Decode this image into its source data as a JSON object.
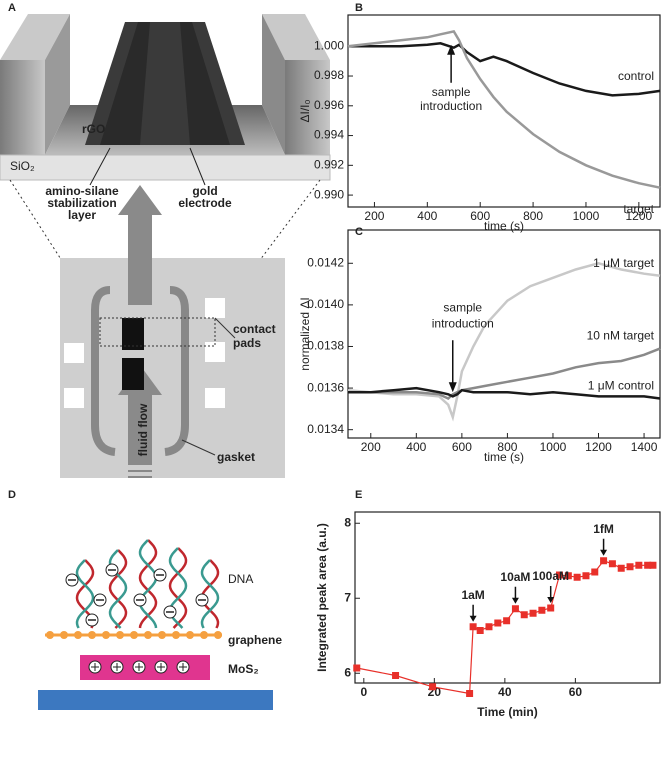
{
  "panels": [
    "A",
    "B",
    "C",
    "D",
    "E"
  ],
  "diagram_a": {
    "layer_top": "rGO",
    "substrate": "SiO₂",
    "silane": [
      "amino-silane",
      "stabilization",
      "layer"
    ],
    "electrode": [
      "gold",
      "electrode"
    ],
    "pads": [
      "contact",
      "pads"
    ],
    "gasket": "gasket",
    "flow": "fluid flow"
  },
  "diagram_d": {
    "dna": "DNA",
    "graphene": "graphene",
    "mos2": "MoS₂"
  },
  "chart_data": [
    {
      "type": "line",
      "xlabel": "time (s)",
      "ylabel": "ΔI/I₀",
      "x": [
        100,
        200,
        300,
        400,
        450,
        500,
        520,
        550,
        600,
        650,
        700,
        800,
        900,
        1000,
        1100,
        1200,
        1280
      ],
      "series": [
        {
          "name": "control",
          "color": "#1a1a1a",
          "values": [
            1.0,
            1.0,
            1.0,
            1.0001,
            1.0002,
            0.9999,
            1.0001,
            0.9996,
            0.999,
            0.9993,
            0.999,
            0.9982,
            0.9975,
            0.997,
            0.9967,
            0.9968,
            0.997
          ]
        },
        {
          "name": "target",
          "color": "#999999",
          "values": [
            1.0,
            1.0002,
            1.0004,
            1.0006,
            1.0008,
            1.001,
            1.0004,
            0.9992,
            0.9978,
            0.9966,
            0.9956,
            0.9941,
            0.9929,
            0.992,
            0.9913,
            0.9908,
            0.9905
          ]
        }
      ],
      "annotation": {
        "text": [
          "sample",
          "introduction"
        ],
        "x": 490,
        "y": 1.0001
      },
      "xlim": [
        100,
        1280
      ],
      "ylim": [
        0.9892,
        1.0021
      ],
      "xticks": [
        200,
        400,
        600,
        800,
        1000,
        1200
      ],
      "yticks": [
        {
          "value": 0.99,
          "label": "0.990"
        },
        0.992,
        0.994,
        0.996,
        0.998,
        {
          "value": 1,
          "label": "1.000"
        }
      ]
    },
    {
      "type": "line",
      "xlabel": "time (s)",
      "ylabel": "normalized ΔI",
      "x": [
        100,
        200,
        300,
        400,
        500,
        540,
        560,
        580,
        600,
        650,
        700,
        800,
        900,
        1000,
        1100,
        1200,
        1300,
        1400,
        1470
      ],
      "series": [
        {
          "name": "1 μM target",
          "color": "#c8c8c8",
          "values": [
            0.01359,
            0.01358,
            0.01357,
            0.01357,
            0.01356,
            0.01352,
            0.01346,
            0.01356,
            0.01368,
            0.0138,
            0.0139,
            0.01402,
            0.01409,
            0.01413,
            0.01417,
            0.0142,
            0.01417,
            0.01415,
            0.01414
          ]
        },
        {
          "name": "10 nM target",
          "color": "#8a8a8a",
          "values": [
            0.01358,
            0.01358,
            0.01358,
            0.01358,
            0.01357,
            0.01355,
            0.01357,
            0.01358,
            0.01359,
            0.0136,
            0.01361,
            0.01363,
            0.01365,
            0.01367,
            0.0137,
            0.01372,
            0.01373,
            0.01376,
            0.01379
          ]
        },
        {
          "name": "1 μM control",
          "color": "#1a1a1a",
          "values": [
            0.01358,
            0.01358,
            0.01359,
            0.0136,
            0.01358,
            0.01357,
            0.01356,
            0.01357,
            0.01359,
            0.01358,
            0.01358,
            0.01358,
            0.01357,
            0.01358,
            0.01357,
            0.01356,
            0.01356,
            0.01356,
            0.01355
          ]
        }
      ],
      "annotation": {
        "text": [
          "sample",
          "introduction"
        ],
        "x": 560,
        "y": 0.01358
      },
      "xlim": [
        100,
        1470
      ],
      "ylim": [
        0.01336,
        0.01436
      ],
      "xticks": [
        200,
        400,
        600,
        800,
        1000,
        1200,
        1400
      ],
      "yticks": [
        0.0134,
        0.0136,
        0.0138,
        {
          "value": 0.014,
          "label": "0.0140"
        },
        0.0142
      ]
    },
    {
      "type": "line",
      "xlabel": "Time (min)",
      "ylabel": "Integrated peak area (a.u.)",
      "color": "#e8302a",
      "x": [
        -2,
        9,
        19.5,
        30,
        31,
        33,
        35.5,
        38,
        40.5,
        43,
        45.5,
        48,
        50.5,
        53,
        55.5,
        58,
        60.5,
        63,
        65.5,
        68,
        70.5,
        73,
        75.5,
        78,
        80.5,
        82
      ],
      "values": [
        6.07,
        5.97,
        5.82,
        5.73,
        6.62,
        6.57,
        6.62,
        6.67,
        6.7,
        6.86,
        6.78,
        6.8,
        6.84,
        6.87,
        7.31,
        7.3,
        7.28,
        7.3,
        7.35,
        7.5,
        7.46,
        7.4,
        7.42,
        7.44,
        7.44,
        7.44
      ],
      "annotations": [
        {
          "text": "1aM",
          "x": 31,
          "y": 6.62
        },
        {
          "text": "10aM",
          "x": 43,
          "y": 6.86
        },
        {
          "text": "100aM",
          "x": 53,
          "y": 6.87
        },
        {
          "text": "1fM",
          "x": 68,
          "y": 7.5
        }
      ],
      "xlim": [
        -2.5,
        84
      ],
      "ylim": [
        5.87,
        8.15
      ],
      "xticks": [
        0,
        20,
        40,
        60
      ],
      "yticks": [
        6,
        7,
        8
      ]
    }
  ]
}
